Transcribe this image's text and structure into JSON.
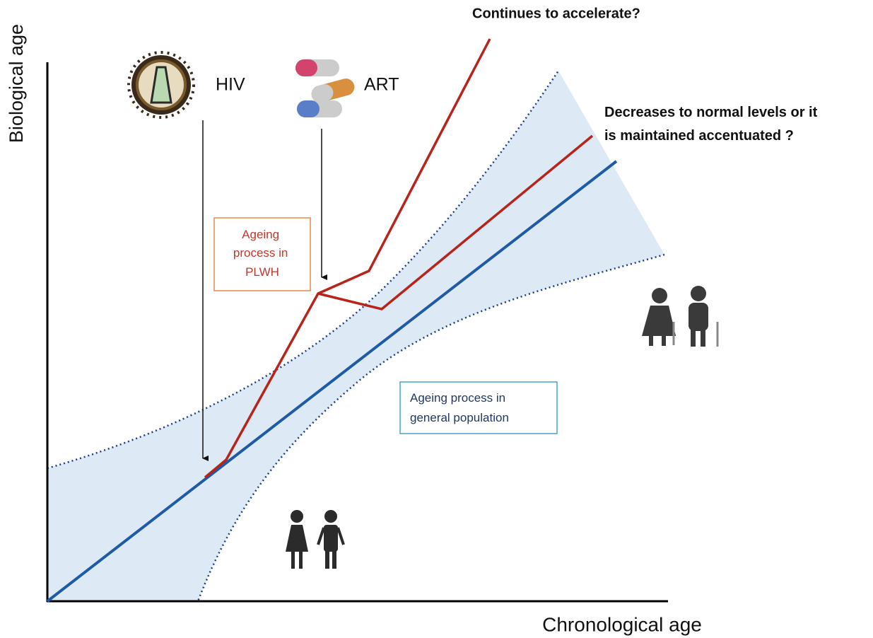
{
  "axes": {
    "y_label": "Biological age",
    "x_label": "Chronological age"
  },
  "icons": {
    "hiv_label": "HIV",
    "art_label": "ART"
  },
  "annotations": {
    "accelerate": "Continues to accelerate?",
    "normalize": [
      "Decreases to normal levels or it",
      "is maintained accentuated ?"
    ]
  },
  "boxes": {
    "plwh": [
      "Ageing",
      "process in",
      "PLWH"
    ],
    "general": [
      "Ageing process in",
      "general population"
    ]
  }
}
